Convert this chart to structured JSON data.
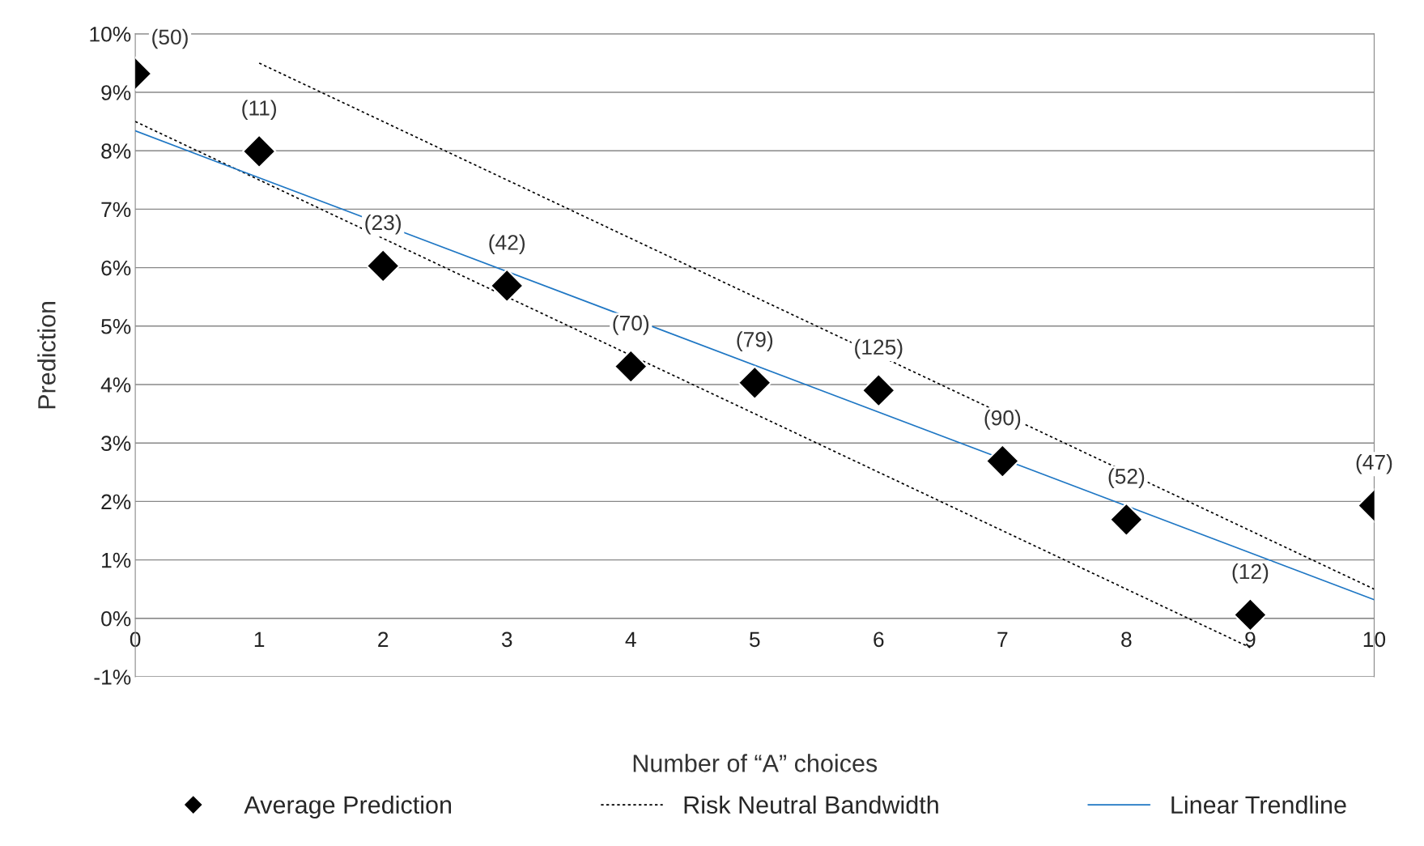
{
  "chart_data": {
    "type": "scatter",
    "xlabel": "Number of “A” choices",
    "ylabel": "Prediction",
    "xlim": [
      0,
      10
    ],
    "ylim": [
      -1,
      10
    ],
    "xticks": [
      0,
      1,
      2,
      3,
      4,
      5,
      6,
      7,
      8,
      9,
      10
    ],
    "yticks": [
      {
        "value": -1,
        "label": "-1%"
      },
      {
        "value": 0,
        "label": "0%"
      },
      {
        "value": 1,
        "label": "1%"
      },
      {
        "value": 2,
        "label": "2%"
      },
      {
        "value": 3,
        "label": "3%"
      },
      {
        "value": 4,
        "label": "4%"
      },
      {
        "value": 5,
        "label": "5%"
      },
      {
        "value": 6,
        "label": "6%"
      },
      {
        "value": 7,
        "label": "7%"
      },
      {
        "value": 8,
        "label": "8%"
      },
      {
        "value": 9,
        "label": "9%"
      },
      {
        "value": 10,
        "label": "10%"
      }
    ],
    "grid": "y",
    "legend": "bottom",
    "series": [
      {
        "name": "Average Prediction",
        "marker": "diamond",
        "color": "#000000",
        "x": [
          0,
          1,
          2,
          3,
          4,
          5,
          6,
          7,
          8,
          9,
          10
        ],
        "values": [
          9.32,
          7.99,
          6.03,
          5.69,
          4.31,
          4.03,
          3.9,
          2.69,
          1.69,
          0.06,
          1.93
        ]
      },
      {
        "name": "Risk Neutral Bandwidth",
        "type": "line",
        "line_style": "dotted",
        "color": "#000000",
        "x": [
          1,
          10
        ],
        "values": [
          9.5,
          0.5
        ]
      },
      {
        "type": "line",
        "line_style": "dotted",
        "color": "#000000",
        "x": [
          0,
          9
        ],
        "values": [
          8.5,
          -0.5
        ]
      },
      {
        "name": "Linear Trendline",
        "type": "line",
        "line_style": "solid",
        "color": "#1f77c4",
        "x": [
          0,
          10
        ],
        "values": [
          8.34,
          0.32
        ]
      }
    ],
    "annotations": [
      {
        "text": "(50)",
        "x": 0,
        "y": 9.32
      },
      {
        "text": "(11)",
        "x": 1,
        "y": 7.99
      },
      {
        "text": "(23)",
        "x": 2,
        "y": 6.03
      },
      {
        "text": "(42)",
        "x": 3,
        "y": 5.69
      },
      {
        "text": "(70)",
        "x": 4,
        "y": 4.31
      },
      {
        "text": "(79)",
        "x": 5,
        "y": 4.03
      },
      {
        "text": "(125)",
        "x": 6,
        "y": 3.9
      },
      {
        "text": "(90)",
        "x": 7,
        "y": 2.69
      },
      {
        "text": "(52)",
        "x": 8,
        "y": 1.69
      },
      {
        "text": "(12)",
        "x": 9,
        "y": 0.06
      },
      {
        "text": "(47)",
        "x": 10,
        "y": 1.93
      }
    ]
  }
}
